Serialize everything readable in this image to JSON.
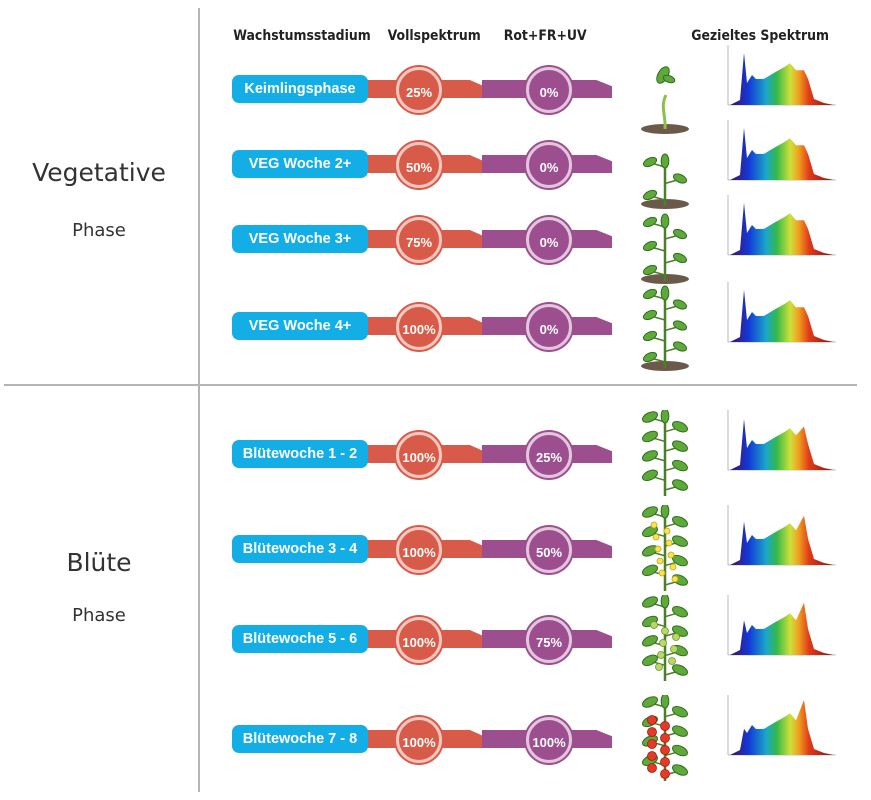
{
  "headers": {
    "stage": "Wachstumsstadium",
    "full": "Vollspektrum",
    "red": "Rot+FR+UV",
    "target": "Gezieltes Spektrum"
  },
  "phases": [
    {
      "title": "Vegetative",
      "subtitle": "Phase"
    },
    {
      "title": "Blüte",
      "subtitle": "Phase"
    }
  ],
  "rows": [
    {
      "stage": "Keimlingsphase",
      "full": "25%",
      "red": "0%",
      "full_level": 0.25,
      "red_level": 0.0,
      "plant_icon": "seedling-icon",
      "blue_peak": 0.9,
      "red_peak": 0.6
    },
    {
      "stage": "VEG Woche  2+",
      "full": "50%",
      "red": "0%",
      "full_level": 0.5,
      "red_level": 0.0,
      "plant_icon": "young-plant-icon",
      "blue_peak": 0.9,
      "red_peak": 0.6
    },
    {
      "stage": "VEG Woche  3+",
      "full": "75%",
      "red": "0%",
      "full_level": 0.75,
      "red_level": 0.0,
      "plant_icon": "growing-plant-icon",
      "blue_peak": 0.9,
      "red_peak": 0.6
    },
    {
      "stage": "VEG Woche  4+",
      "full": "100%",
      "red": "0%",
      "full_level": 1.0,
      "red_level": 0.0,
      "plant_icon": "mature-plant-icon",
      "blue_peak": 0.9,
      "red_peak": 0.6
    },
    {
      "stage": "Blütewoche 1 - 2",
      "full": "100%",
      "red": "25%",
      "full_level": 1.0,
      "red_level": 0.25,
      "plant_icon": "plant-icon",
      "blue_peak": 0.88,
      "red_peak": 0.75
    },
    {
      "stage": "Blütewoche 3 - 4",
      "full": "100%",
      "red": "50%",
      "full_level": 1.0,
      "red_level": 0.5,
      "plant_icon": "flowering-plant-icon",
      "blue_peak": 0.75,
      "red_peak": 0.85
    },
    {
      "stage": "Blütewoche 5 - 6",
      "full": "100%",
      "red": "75%",
      "full_level": 1.0,
      "red_level": 0.75,
      "plant_icon": "green-fruit-plant-icon",
      "blue_peak": 0.6,
      "red_peak": 0.9
    },
    {
      "stage": "Blütewoche 7 - 8",
      "full": "100%",
      "red": "100%",
      "full_level": 1.0,
      "red_level": 1.0,
      "plant_icon": "tomato-plant-icon",
      "blue_peak": 0.45,
      "red_peak": 0.95
    }
  ],
  "colors": {
    "pill": "#14aee6",
    "full": "#d85a48",
    "red": "#9c4e8e",
    "divider": "#b4b4b4"
  }
}
